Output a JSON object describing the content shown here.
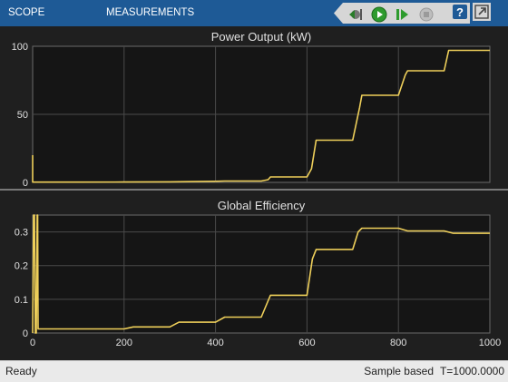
{
  "toolstrip": {
    "tabs": [
      {
        "label": "SCOPE"
      },
      {
        "label": "MEASUREMENTS"
      }
    ],
    "buttons": [
      {
        "name": "step-back-button",
        "icon": "step-back-icon"
      },
      {
        "name": "run-button",
        "icon": "play-icon"
      },
      {
        "name": "step-forward-button",
        "icon": "step-forward-icon"
      },
      {
        "name": "stop-button",
        "icon": "stop-icon"
      },
      {
        "name": "help-button",
        "icon": "help-icon"
      },
      {
        "name": "undock-button",
        "icon": "undock-icon"
      }
    ],
    "accent": "#1e5a96"
  },
  "status": {
    "left": "Ready",
    "mode": "Sample based",
    "time": "T=1000.0000"
  },
  "colors": {
    "background": "#1f1f1f",
    "axes_bg": "#151515",
    "grid": "#4a4a4a",
    "trace": "#eecf5a",
    "text": "#e0e0e0"
  },
  "chart_data": [
    {
      "type": "line",
      "title": "Power Output (kW)",
      "xlabel": "",
      "ylabel": "",
      "xlim": [
        0,
        1000
      ],
      "ylim": [
        0,
        100
      ],
      "xticks": [
        0,
        200,
        400,
        600,
        800,
        1000
      ],
      "yticks": [
        0,
        50,
        100
      ],
      "show_xticklabels": false,
      "grid": true,
      "series": [
        {
          "x": [
            0,
            0,
            2,
            100,
            200,
            300,
            400,
            420,
            500,
            515,
            520,
            600,
            610,
            620,
            700,
            715,
            720,
            800,
            815,
            820,
            900,
            910,
            920,
            1000
          ],
          "y": [
            20,
            0.2,
            0.2,
            0.2,
            0.3,
            0.4,
            0.8,
            1,
            1,
            2,
            4,
            4,
            10,
            31,
            31,
            55,
            64,
            64,
            79,
            82,
            82,
            97,
            97,
            97
          ]
        }
      ]
    },
    {
      "type": "line",
      "title": "Global Efficiency",
      "xlabel": "",
      "ylabel": "",
      "xlim": [
        0,
        1000
      ],
      "ylim": [
        0,
        0.35
      ],
      "xticks": [
        0,
        200,
        400,
        600,
        800,
        1000
      ],
      "xticklabels": [
        "0",
        "200",
        "400",
        "600",
        "800",
        "1000"
      ],
      "yticks": [
        0,
        0.1,
        0.2,
        0.3
      ],
      "yticklabels": [
        "0",
        "0.1",
        "0.2",
        "0.3"
      ],
      "grid": true,
      "series": [
        {
          "x": [
            0,
            2,
            4,
            6,
            8,
            10,
            11,
            12,
            100,
            200,
            220,
            300,
            320,
            400,
            420,
            500,
            520,
            600,
            612,
            620,
            700,
            712,
            720,
            800,
            820,
            900,
            920,
            1000
          ],
          "y": [
            0,
            0.35,
            0.35,
            0,
            0,
            0.35,
            0.35,
            0.012,
            0.012,
            0.012,
            0.018,
            0.018,
            0.032,
            0.032,
            0.047,
            0.047,
            0.112,
            0.112,
            0.22,
            0.248,
            0.248,
            0.3,
            0.311,
            0.311,
            0.303,
            0.303,
            0.296,
            0.296
          ]
        }
      ]
    }
  ]
}
